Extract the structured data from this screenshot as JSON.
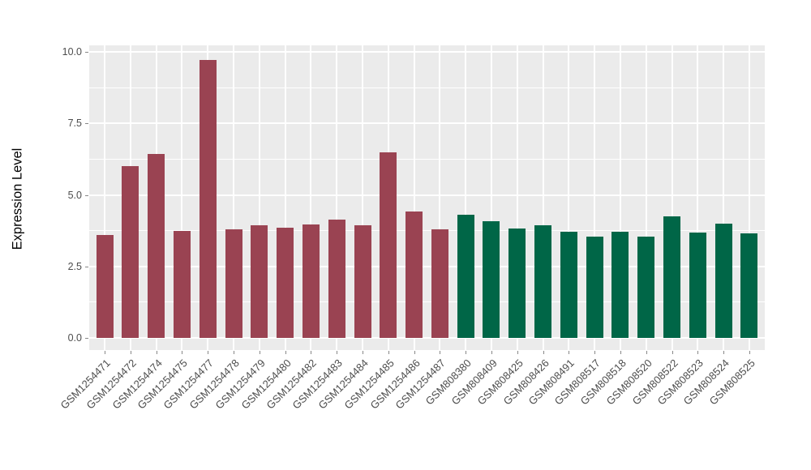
{
  "chart_data": {
    "type": "bar",
    "title": "",
    "xlabel": "",
    "ylabel": "Expression Level",
    "ylim": [
      0,
      10.2
    ],
    "yticks": [
      0,
      2.5,
      5,
      7.5,
      10
    ],
    "ytick_labels": [
      "0.0",
      "2.5",
      "5.0",
      "7.5",
      "10.0"
    ],
    "yticks_minor": [
      1.25,
      3.75,
      6.25,
      8.75
    ],
    "grid": true,
    "legend_position": "none",
    "categories": [
      "GSM1254471",
      "GSM1254472",
      "GSM1254474",
      "GSM1254475",
      "GSM1254477",
      "GSM1254478",
      "GSM1254479",
      "GSM1254480",
      "GSM1254482",
      "GSM1254483",
      "GSM1254484",
      "GSM1254485",
      "GSM1254486",
      "GSM1254487",
      "GSM808380",
      "GSM808409",
      "GSM808425",
      "GSM808426",
      "GSM808491",
      "GSM808517",
      "GSM808518",
      "GSM808520",
      "GSM808522",
      "GSM808523",
      "GSM808524",
      "GSM808525"
    ],
    "values": [
      3.6,
      6.0,
      6.44,
      3.75,
      9.71,
      3.81,
      3.93,
      3.86,
      3.98,
      4.15,
      3.93,
      6.49,
      4.42,
      3.8,
      4.3,
      4.08,
      3.82,
      3.95,
      3.7,
      3.53,
      3.72,
      3.54,
      4.25,
      3.68,
      3.99,
      3.66
    ],
    "bar_groups": [
      "maroon",
      "maroon",
      "maroon",
      "maroon",
      "maroon",
      "maroon",
      "maroon",
      "maroon",
      "maroon",
      "maroon",
      "maroon",
      "maroon",
      "maroon",
      "maroon",
      "green",
      "green",
      "green",
      "green",
      "green",
      "green",
      "green",
      "green",
      "green",
      "green",
      "green",
      "green"
    ],
    "group_colors": {
      "maroon": "#9A4352",
      "green": "#006647"
    }
  },
  "colors": {
    "panel_background": "#EBEBEB",
    "grid_major": "#FFFFFF",
    "grid_minor": "#FFFFFF",
    "axis_text": "#4D4D4D",
    "axis_title": "#000000",
    "tick_mark": "#878787",
    "page_background": "#FFFFFF"
  }
}
